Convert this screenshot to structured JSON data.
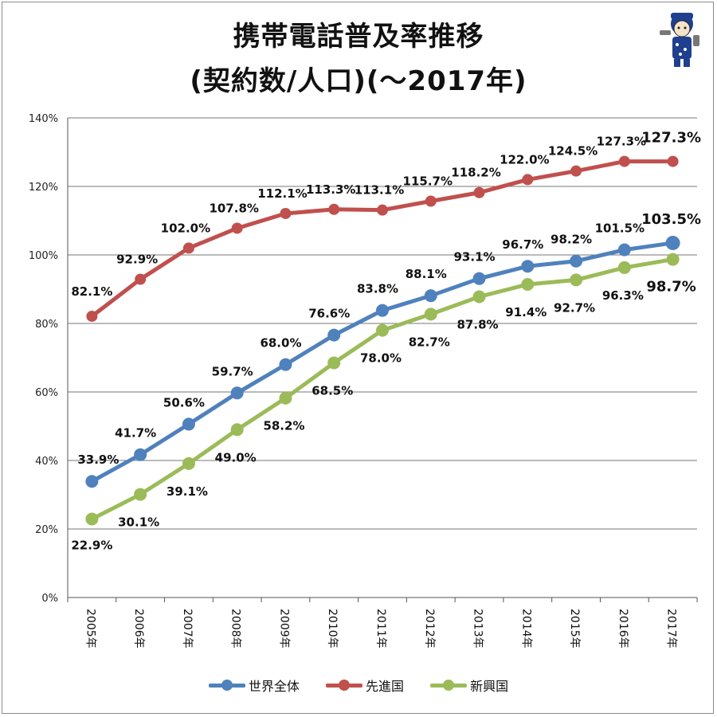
{
  "title": {
    "line1": "携帯電話普及率推移",
    "line2": "(契約数/人口)(～2017年)"
  },
  "mascot": {
    "icon": "mascot-character-icon"
  },
  "chart_data": {
    "type": "line",
    "categories": [
      "2005年",
      "2006年",
      "2007年",
      "2008年",
      "2009年",
      "2010年",
      "2011年",
      "2012年",
      "2013年",
      "2014年",
      "2015年",
      "2016年",
      "2017年"
    ],
    "ylim": [
      0,
      140
    ],
    "yticks": [
      0,
      20,
      40,
      60,
      80,
      100,
      120,
      140
    ],
    "ytick_labels": [
      "0%",
      "20%",
      "40%",
      "60%",
      "80%",
      "100%",
      "120%",
      "140%"
    ],
    "grid": true,
    "legend_position": "bottom",
    "series": [
      {
        "name": "世界全体",
        "color": "#4f81bd",
        "values": [
          33.9,
          41.7,
          50.6,
          59.7,
          68.0,
          76.6,
          83.8,
          88.1,
          93.1,
          96.7,
          98.2,
          101.5,
          103.5
        ],
        "labels": [
          "33.9%",
          "41.7%",
          "50.6%",
          "59.7%",
          "68.0%",
          "76.6%",
          "83.8%",
          "88.1%",
          "93.1%",
          "96.7%",
          "98.2%",
          "101.5%",
          "103.5%"
        ]
      },
      {
        "name": "先進国",
        "color": "#c0504d",
        "values": [
          82.1,
          92.9,
          102.0,
          107.8,
          112.1,
          113.3,
          113.1,
          115.7,
          118.2,
          122.0,
          124.5,
          127.3,
          127.3
        ],
        "labels": [
          "82.1%",
          "92.9%",
          "102.0%",
          "107.8%",
          "112.1%",
          "113.3%",
          "113.1%",
          "115.7%",
          "118.2%",
          "122.0%",
          "124.5%",
          "127.3%",
          "127.3%"
        ]
      },
      {
        "name": "新興国",
        "color": "#9bbb59",
        "values": [
          22.9,
          30.1,
          39.1,
          49.0,
          58.2,
          68.5,
          78.0,
          82.7,
          87.8,
          91.4,
          92.7,
          96.3,
          98.7
        ],
        "labels": [
          "22.9%",
          "30.1%",
          "39.1%",
          "49.0%",
          "58.2%",
          "68.5%",
          "78.0%",
          "82.7%",
          "87.8%",
          "91.4%",
          "92.7%",
          "96.3%",
          "98.7%"
        ]
      }
    ]
  }
}
